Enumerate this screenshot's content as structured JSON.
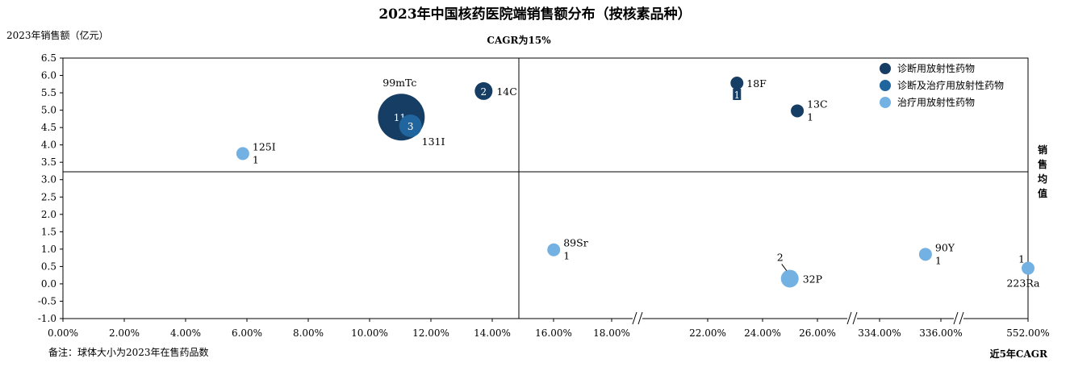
{
  "chart_data": {
    "type": "scatter",
    "subtype": "bubble",
    "title": "2023年中国核药医院端销售额分布（按核素品种）",
    "subtitle": "CAGR为15%",
    "ylabel": "2023年销售额（亿元）",
    "xlabel": "近5年CAGR",
    "mean_line_label": "销售均值",
    "note": "备注：球体大小为2023年在售药品数",
    "ylim": [
      -1.0,
      6.5
    ],
    "y_ticks": [
      "6.5",
      "6.0",
      "5.5",
      "5.0",
      "4.5",
      "4.0",
      "3.5",
      "3.0",
      "2.5",
      "2.0",
      "1.5",
      "1.0",
      "0.5",
      "0.0",
      "-0.5",
      "-1.0"
    ],
    "x_ticks": [
      "0.00%",
      "2.00%",
      "4.00%",
      "6.00%",
      "8.00%",
      "10.00%",
      "12.00%",
      "14.00%",
      "16.00%",
      "18.00%",
      "22.00%",
      "24.00%",
      "26.00%",
      "334.00%",
      "336.00%",
      "552.00%"
    ],
    "x_axis_breaks": true,
    "reference_lines": {
      "x": "15%",
      "y": 3.2
    },
    "grid": false,
    "legend_position": "top-right",
    "colors": {
      "诊断用放射性药物": "#163d63",
      "诊断及治疗用放射性药物": "#21659e",
      "治疗用放射性药物": "#74b1e3"
    },
    "legend": [
      {
        "name": "诊断用放射性药物",
        "color": "#163d63"
      },
      {
        "name": "诊断及治疗用放射性药物",
        "color": "#21659e"
      },
      {
        "name": "治疗用放射性药物",
        "color": "#74b1e3"
      }
    ],
    "points": [
      {
        "label": "99mTc",
        "x": 11.1,
        "y": 4.8,
        "count": 11,
        "category": "诊断用放射性药物"
      },
      {
        "label": "14C",
        "x": 13.8,
        "y": 5.55,
        "count": 2,
        "category": "诊断用放射性药物"
      },
      {
        "label": "131I",
        "x": 11.4,
        "y": 4.55,
        "count": 3,
        "category": "诊断及治疗用放射性药物"
      },
      {
        "label": "125I",
        "x": 5.9,
        "y": 3.75,
        "count": 1,
        "category": "治疗用放射性药物"
      },
      {
        "label": "18F",
        "x": 22.8,
        "y": 5.78,
        "count": 1,
        "category": "诊断用放射性药物"
      },
      {
        "label": "13C",
        "x": 25.2,
        "y": 4.98,
        "count": 1,
        "category": "诊断用放射性药物"
      },
      {
        "label": "89Sr",
        "x": 16.1,
        "y": 0.98,
        "count": 1,
        "category": "治疗用放射性药物"
      },
      {
        "label": "32P",
        "x": 24.9,
        "y": 0.15,
        "count": 2,
        "category": "治疗用放射性药物"
      },
      {
        "label": "90Y",
        "x": 335.5,
        "y": 0.85,
        "count": 1,
        "category": "治疗用放射性药物"
      },
      {
        "label": "223Ra",
        "x": 552.0,
        "y": 0.45,
        "count": 1,
        "category": "治疗用放射性药物"
      }
    ]
  }
}
